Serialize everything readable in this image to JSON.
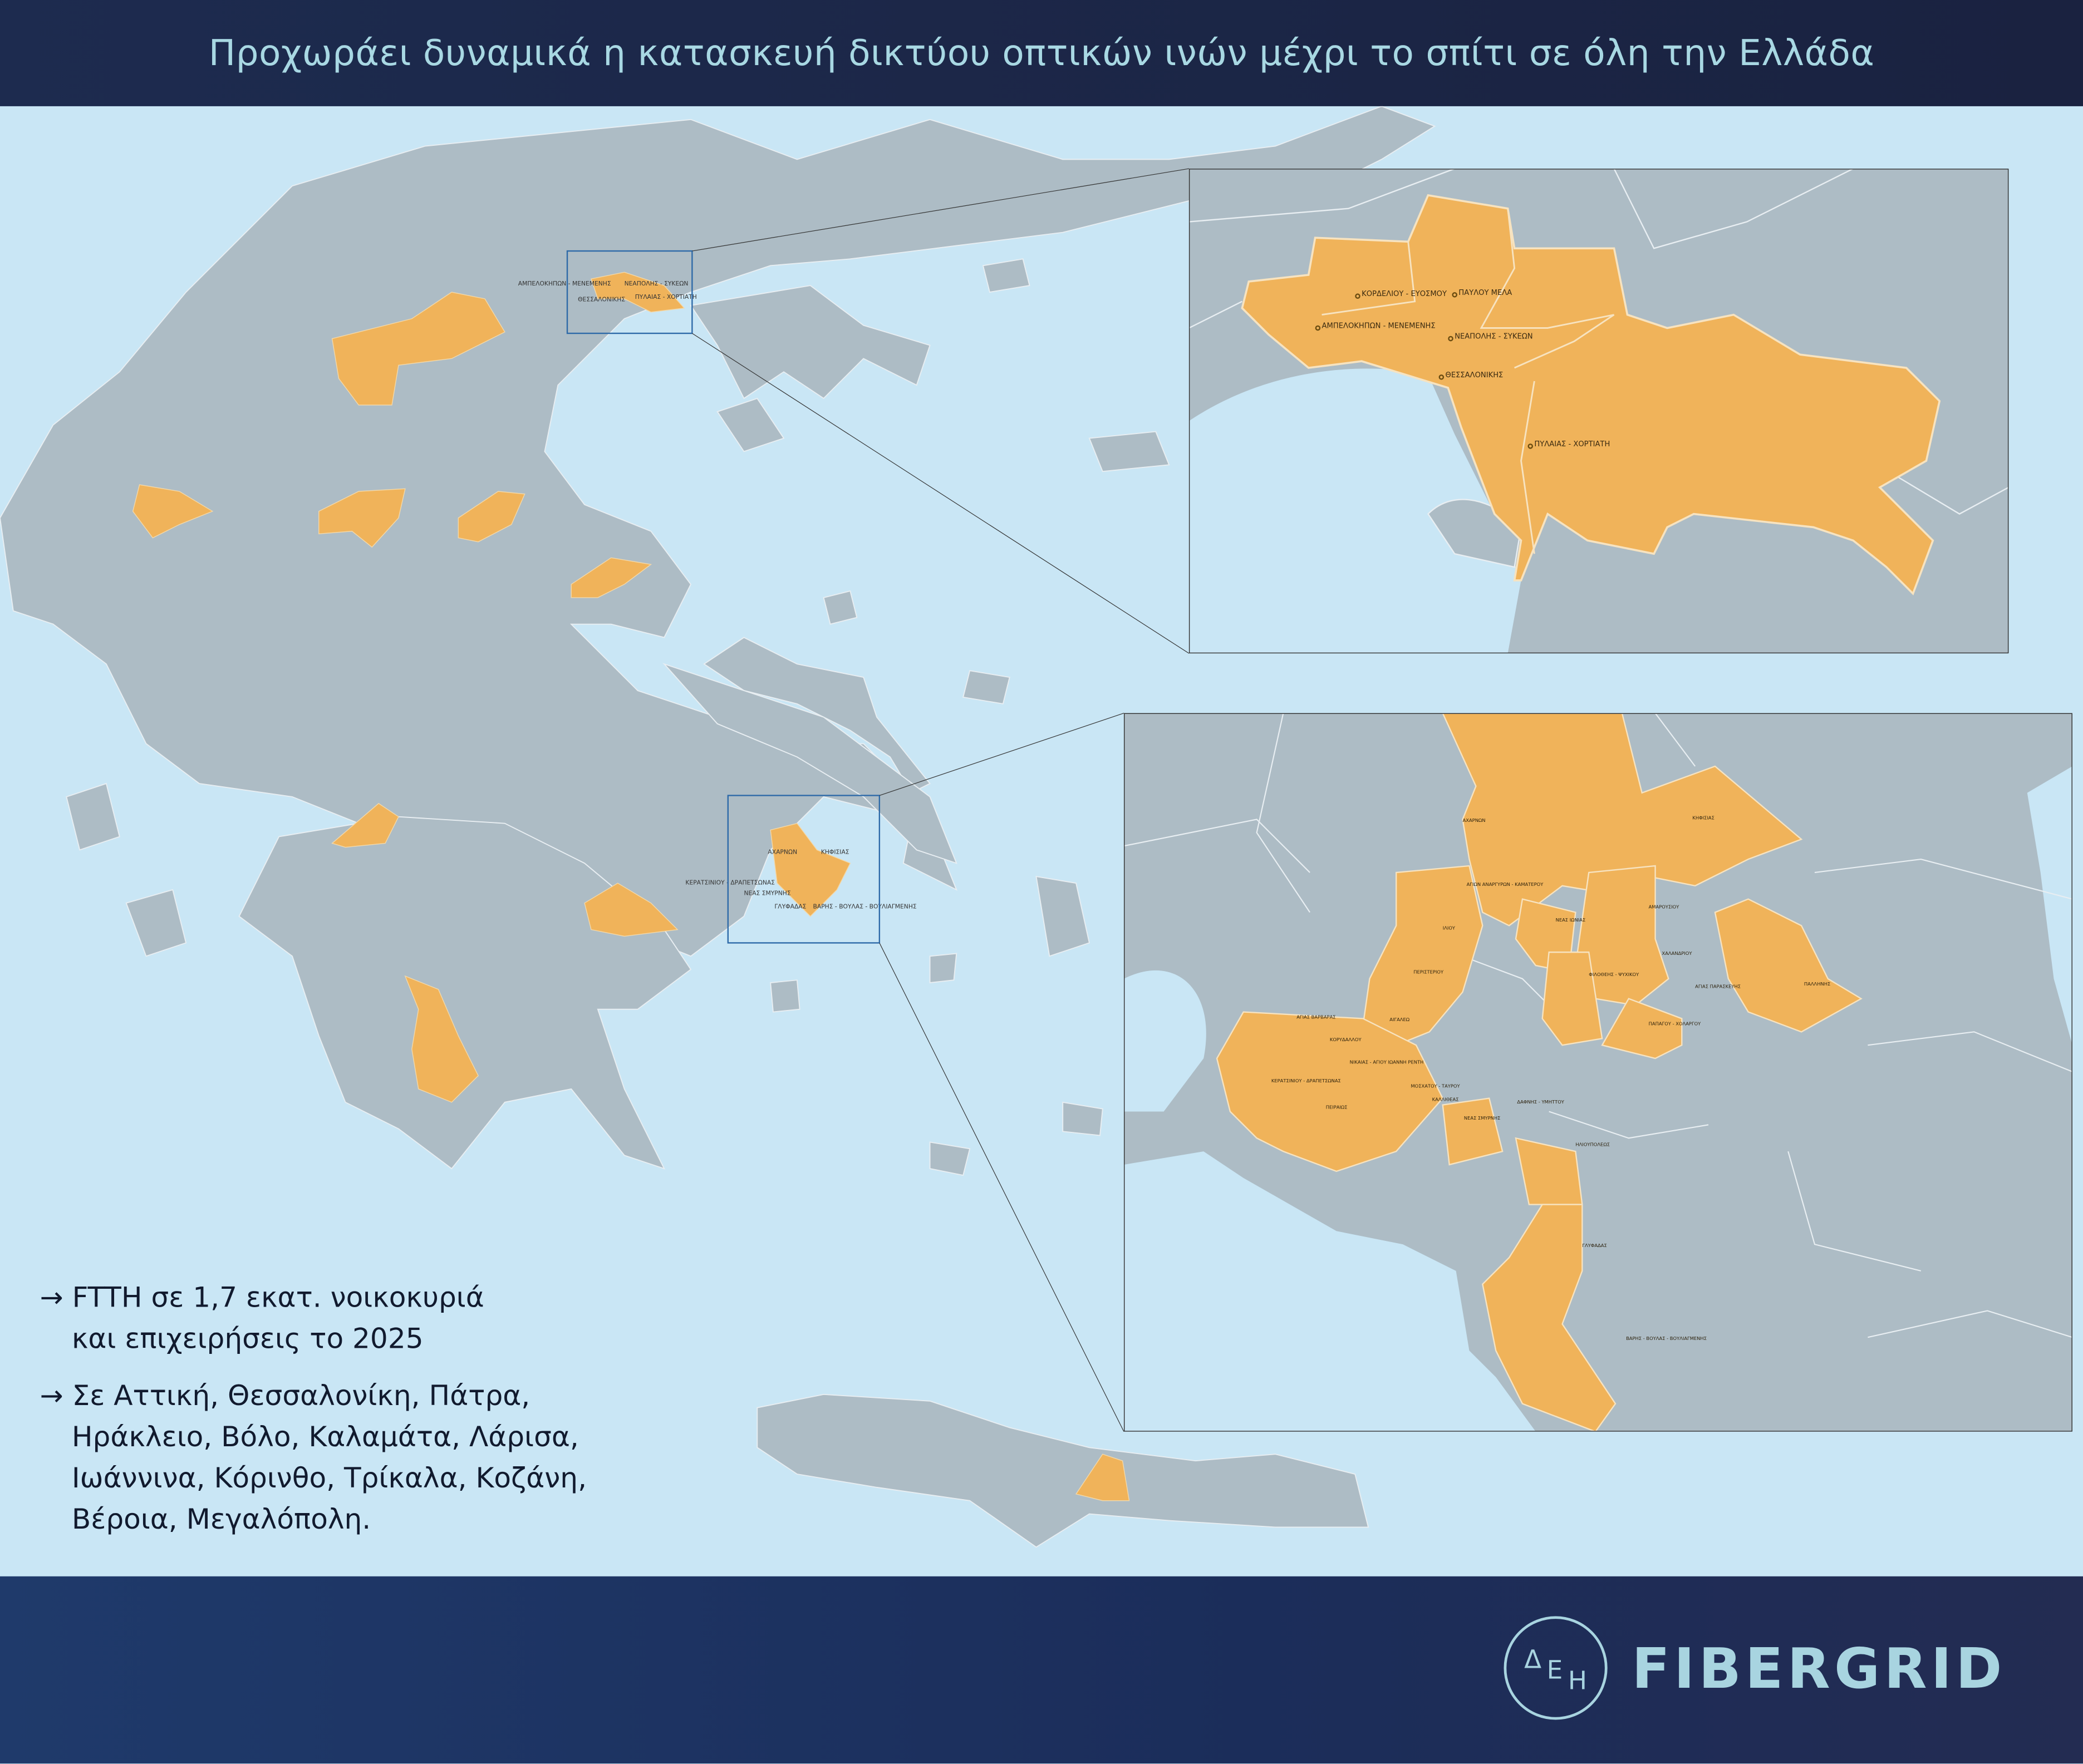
{
  "header": {
    "title": "Προχωράει δυναμικά η κατασκευή δικτύου οπτικών ινών μέχρι το σπίτι σε όλη την Ελλάδα"
  },
  "colors": {
    "header_bg": "#1c2648",
    "title_text": "#a8d8e3",
    "sea": "#c9e6f5",
    "land": "#adbcc5",
    "coverage": "#f0b35a",
    "footer_bg": "#1e3460",
    "inset_frame": "#2e6aa8"
  },
  "bullets": [
    {
      "arrow": "→",
      "lines": [
        "FTTH σε 1,7 εκατ. νοικοκυριά",
        "και επιχειρήσεις το 2025"
      ]
    },
    {
      "arrow": "→",
      "lines": [
        "Σε Αττική, Θεσσαλονίκη, Πάτρα,",
        "Ηράκλειο, Βόλο, Καλαμάτα, Λάρισα,",
        "Ιωάννινα, Κόρινθο, Τρίκαλα, Κοζάνη,",
        "Βέροια, Μεγαλόπολη."
      ]
    }
  ],
  "thessaloniki_inset": {
    "labels": [
      "ΚΟΡΔΕΛΙΟΥ - ΕΥΟΣΜΟΥ",
      "ΠΑΥΛΟΥ ΜΕΛΑ",
      "ΑΜΠΕΛΟΚΗΠΩΝ - ΜΕΝΕΜΕΝΗΣ",
      "ΝΕΑΠΟΛΗΣ - ΣΥΚΕΩΝ",
      "ΘΕΣΣΑΛΟΝΙΚΗΣ",
      "ΠΥΛΑΙΑΣ - ΧΟΡΤΙΑΤΗ"
    ]
  },
  "athens_inset": {
    "labels": [
      "ΑΧΑΡΝΩΝ",
      "ΚΗΦΙΣΙΑΣ",
      "ΑΓΙΩΝ ΑΝΑΡΓΥΡΩΝ - ΚΑΜΑΤΕΡΟΥ",
      "ΑΜΑΡΟΥΣΙΟΥ",
      "ΝΕΑΣ ΙΩΝΙΑΣ",
      "ΙΛΙΟΥ",
      "ΧΑΛΑΝΔΡΙΟΥ",
      "ΠΕΡΙΣΤΕΡΙΟΥ",
      "ΦΙΛΟΘΕΗΣ - ΨΥΧΙΚΟΥ",
      "ΑΓΙΑΣ ΠΑΡΑΣΚΕΥΗΣ",
      "ΠΑΛΛΗΝΗΣ",
      "ΑΓΙΑΣ ΒΑΡΒΑΡΑΣ",
      "ΑΙΓΑΛΕΩ",
      "ΠΑΠΑΓΟΥ - ΧΟΛΑΡΓΟΥ",
      "ΚΟΡΥΔΑΛΛΟΥ",
      "ΝΙΚΑΙΑΣ - ΑΓΙΟΥ ΙΩΑΝΝΗ ΡΕΝΤΗ",
      "ΚΕΡΑΤΣΙΝΙΟΥ - ΔΡΑΠΕΤΣΩΝΑΣ",
      "ΜΟΣΧΑΤΟΥ - ΤΑΥΡΟΥ",
      "ΚΑΛΛΙΘΕΑΣ",
      "ΔΑΦΝΗΣ - ΥΜΗΤΤΟΥ",
      "ΠΕΙΡΑΙΩΣ",
      "ΝΕΑΣ ΣΜΥΡΝΗΣ",
      "ΗΛΙΟΥΠΟΛΕΩΣ",
      "ΓΛΥΦΑΔΑΣ",
      "ΒΑΡΗΣ - ΒΟΥΛΑΣ - ΒΟΥΛΙΑΓΜΕΝΗΣ"
    ]
  },
  "logo": {
    "mark_letters": [
      "Δ",
      "Ε",
      "Η"
    ],
    "wordmark": "FIBERGRID"
  }
}
